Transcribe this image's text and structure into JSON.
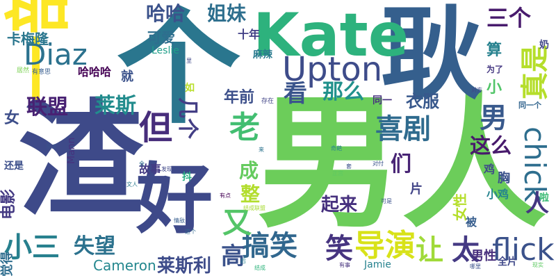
{
  "words": [
    {
      "text": "男人",
      "color": "#6ccd5a"
    },
    {
      "text": "渣",
      "color": "#3e4a89"
    },
    {
      "text": "个",
      "color": "#2a768e"
    },
    {
      "text": "耿",
      "color": "#355f8d"
    },
    {
      "text": "一部",
      "color": "#fde725"
    },
    {
      "text": "Kate",
      "color": "#2db27d"
    },
    {
      "text": "好",
      "color": "#3e4989"
    },
    {
      "text": "Upton",
      "color": "#3e4c8a"
    },
    {
      "text": "Diaz",
      "color": "#2c728e"
    },
    {
      "text": "真是",
      "color": "#b5de2b"
    },
    {
      "text": "chick",
      "color": "#2e6e8e"
    },
    {
      "text": "flick",
      "color": "#3b528b"
    },
    {
      "text": "导演",
      "color": "#d8e219"
    },
    {
      "text": "搞笑",
      "color": "#31678e"
    },
    {
      "text": "喜剧",
      "color": "#2f6b8e"
    },
    {
      "text": "小三",
      "color": "#27808e"
    },
    {
      "text": "又",
      "color": "#54c568"
    },
    {
      "text": "老",
      "color": "#42be71"
    },
    {
      "text": "但",
      "color": "#472d7b"
    },
    {
      "text": "让",
      "color": "#a0da39"
    },
    {
      "text": "笑",
      "color": "#463480"
    },
    {
      "text": "太",
      "color": "#443983"
    },
    {
      "text": "男",
      "color": "#38598c"
    },
    {
      "text": "高",
      "color": "#3b528b"
    },
    {
      "text": "三个",
      "color": "#481b6d"
    },
    {
      "text": "哈哈",
      "color": "#3b528b"
    },
    {
      "text": "姐妹",
      "color": "#2e6f8e"
    },
    {
      "text": "卡梅隆",
      "color": "#2a768e"
    },
    {
      "text": "失望",
      "color": "#2c728e"
    },
    {
      "text": "联盟",
      "color": "#482173"
    },
    {
      "text": "莱斯利",
      "color": "#3e4c8a"
    },
    {
      "text": "Cameron",
      "color": "#24878e"
    },
    {
      "text": "那么",
      "color": "#21918c"
    },
    {
      "text": "看",
      "color": "#3a548c"
    },
    {
      "text": "莱斯",
      "color": "#228c8d"
    },
    {
      "text": "几个",
      "color": "#433e85"
    },
    {
      "text": "这么",
      "color": "#481a6c"
    },
    {
      "text": "们",
      "color": "#482475"
    },
    {
      "text": "成",
      "color": "#65cb5e"
    },
    {
      "text": "整",
      "color": "#b2dd2d"
    },
    {
      "text": "起来",
      "color": "#46307e"
    },
    {
      "text": "人",
      "color": "#453781"
    },
    {
      "text": "年前",
      "color": "#3c4f8a"
    },
    {
      "text": "衣服",
      "color": "#38588c"
    },
    {
      "text": "算",
      "color": "#26818e"
    },
    {
      "text": "小",
      "color": "#52c569"
    },
    {
      "text": "可爱",
      "color": "#2e6e8e"
    },
    {
      "text": "十年",
      "color": "#424086"
    },
    {
      "text": "Leslie",
      "color": "#1f9e89"
    },
    {
      "text": "麻辣",
      "color": "#297a8e"
    },
    {
      "text": "哈哈哈",
      "color": "#440154"
    },
    {
      "text": "就",
      "color": "#3b528b"
    },
    {
      "text": "女",
      "color": "#3d4e8a"
    },
    {
      "text": "电影",
      "color": "#443a83"
    },
    {
      "text": "故事",
      "color": "#443a83"
    },
    {
      "text": "男性",
      "color": "#472e7c"
    },
    {
      "text": "女性",
      "color": "#b5de2b"
    },
    {
      "text": "胸",
      "color": "#3b528b"
    },
    {
      "text": "片",
      "color": "#414487"
    },
    {
      "text": "小鸡",
      "color": "#25838e"
    },
    {
      "text": "鸡",
      "color": "#3e4a89"
    },
    {
      "text": "全片",
      "color": "#3f4889"
    },
    {
      "text": "被",
      "color": "#365d8d"
    },
    {
      "text": "Jamie",
      "color": "#26828e"
    },
    {
      "text": "Mann",
      "color": "#46327e"
    },
    {
      "text": "抖",
      "color": "#27ad81"
    },
    {
      "text": "觉得",
      "color": "#2e6d8e"
    },
    {
      "text": "还是",
      "color": "#3c4f8a"
    },
    {
      "text": "同一",
      "color": "#46307e"
    },
    {
      "text": "同一个",
      "color": "#32658e"
    },
    {
      "text": "为了",
      "color": "#453882"
    },
    {
      "text": "奶",
      "color": "#404688"
    },
    {
      "text": "啦",
      "color": "#3bbb75"
    },
    {
      "text": "如",
      "color": "#b8de29"
    },
    {
      "text": "有意思",
      "color": "#365c8d"
    },
    {
      "text": "对方",
      "color": "#3f4788"
    },
    {
      "text": "里",
      "color": "#3f4889"
    },
    {
      "text": "居然",
      "color": "#7ad151"
    },
    {
      "text": "存在",
      "color": "#414487"
    },
    {
      "text": "套",
      "color": "#3b528b"
    },
    {
      "text": "来",
      "color": "#2c738e"
    },
    {
      "text": "会",
      "color": "#2e6e8e"
    },
    {
      "text": "发现",
      "color": "#3f4788"
    },
    {
      "text": "文人",
      "color": "#2a788e"
    },
    {
      "text": "奇葩",
      "color": "#26818e"
    },
    {
      "text": "对付",
      "color": "#3a538b"
    },
    {
      "text": "正宫",
      "color": "#5ec962"
    },
    {
      "text": "有点",
      "color": "#440154"
    },
    {
      "text": "结成联盟",
      "color": "#a8db34"
    },
    {
      "text": "这个",
      "color": "#31688e"
    },
    {
      "text": "情敌",
      "color": "#365d8d"
    },
    {
      "text": "后",
      "color": "#26818e"
    },
    {
      "text": "结成",
      "color": "#2fb47c"
    },
    {
      "text": "哪里",
      "color": "#3b528b"
    },
    {
      "text": "现实",
      "color": "#5ec962"
    },
    {
      "text": "可是",
      "color": "#3b528b"
    },
    {
      "text": "有事",
      "color": "#46327e"
    },
    {
      "text": "原来",
      "color": "#3b528b"
    }
  ]
}
